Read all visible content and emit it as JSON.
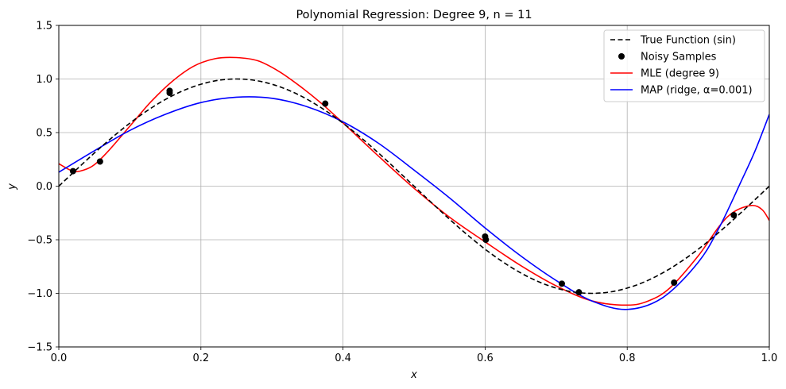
{
  "chart_data": {
    "type": "line",
    "title": "Polynomial Regression: Degree 9, n = 11",
    "xlabel": "x",
    "ylabel": "y",
    "xlim": [
      0,
      1
    ],
    "ylim": [
      -1.5,
      1.5
    ],
    "xticks": [
      0,
      0.2,
      0.4,
      0.6,
      0.8,
      1.0
    ],
    "xtick_labels": [
      "0.0",
      "0.2",
      "0.4",
      "0.6",
      "0.8",
      "1.0"
    ],
    "yticks": [
      -1.5,
      -1.0,
      -0.5,
      0.0,
      0.5,
      1.0,
      1.5
    ],
    "ytick_labels": [
      "−1.5",
      "−1.0",
      "−0.5",
      "0.0",
      "0.5",
      "1.0",
      "1.5"
    ],
    "grid": true,
    "legend_position": "top-right",
    "series": [
      {
        "name": "True Function (sin)",
        "kind": "dashed-line",
        "color": "#000000",
        "x": [
          0,
          0.025,
          0.05,
          0.075,
          0.1,
          0.125,
          0.15,
          0.175,
          0.2,
          0.225,
          0.25,
          0.275,
          0.3,
          0.325,
          0.35,
          0.375,
          0.4,
          0.425,
          0.45,
          0.475,
          0.5,
          0.525,
          0.55,
          0.575,
          0.6,
          0.625,
          0.65,
          0.675,
          0.7,
          0.725,
          0.75,
          0.775,
          0.8,
          0.825,
          0.85,
          0.875,
          0.9,
          0.925,
          0.95,
          0.975,
          1.0
        ],
        "y": [
          0,
          0.156,
          0.309,
          0.454,
          0.588,
          0.707,
          0.809,
          0.891,
          0.951,
          0.988,
          1.0,
          0.988,
          0.951,
          0.891,
          0.809,
          0.707,
          0.588,
          0.454,
          0.309,
          0.156,
          0,
          -0.156,
          -0.309,
          -0.454,
          -0.588,
          -0.707,
          -0.809,
          -0.891,
          -0.951,
          -0.988,
          -1.0,
          -0.988,
          -0.951,
          -0.891,
          -0.809,
          -0.707,
          -0.588,
          -0.454,
          -0.309,
          -0.156,
          0
        ]
      },
      {
        "name": "Noisy Samples",
        "kind": "scatter",
        "color": "#000000",
        "x": [
          0.02,
          0.058,
          0.156,
          0.156,
          0.375,
          0.6,
          0.601,
          0.708,
          0.732,
          0.866,
          0.95
        ],
        "y": [
          0.14,
          0.23,
          0.89,
          0.87,
          0.77,
          -0.47,
          -0.5,
          -0.91,
          -0.99,
          -0.9,
          -0.27
        ]
      },
      {
        "name": "MLE (degree 9)",
        "kind": "line",
        "color": "#ff0000",
        "x": [
          0,
          0.02,
          0.035,
          0.05,
          0.07,
          0.1,
          0.13,
          0.16,
          0.19,
          0.22,
          0.25,
          0.28,
          0.31,
          0.34,
          0.37,
          0.4,
          0.45,
          0.5,
          0.55,
          0.6,
          0.65,
          0.7,
          0.75,
          0.8,
          0.83,
          0.86,
          0.9,
          0.93,
          0.95,
          0.975,
          0.99,
          1.0
        ],
        "y": [
          0.21,
          0.14,
          0.15,
          0.2,
          0.33,
          0.56,
          0.79,
          0.98,
          1.12,
          1.19,
          1.2,
          1.17,
          1.07,
          0.93,
          0.77,
          0.59,
          0.28,
          -0.02,
          -0.29,
          -0.52,
          -0.74,
          -0.93,
          -1.07,
          -1.11,
          -1.07,
          -0.95,
          -0.65,
          -0.37,
          -0.24,
          -0.18,
          -0.22,
          -0.32
        ]
      },
      {
        "name": "MAP (ridge, α=0.001)",
        "kind": "line",
        "color": "#0000ff",
        "x": [
          0,
          0.05,
          0.1,
          0.15,
          0.2,
          0.25,
          0.3,
          0.35,
          0.4,
          0.45,
          0.5,
          0.55,
          0.6,
          0.65,
          0.7,
          0.75,
          0.8,
          0.85,
          0.9,
          0.93,
          0.96,
          0.98,
          1.0
        ],
        "y": [
          0.13,
          0.33,
          0.52,
          0.67,
          0.78,
          0.83,
          0.82,
          0.74,
          0.6,
          0.4,
          0.15,
          -0.11,
          -0.39,
          -0.65,
          -0.88,
          -1.07,
          -1.15,
          -1.04,
          -0.71,
          -0.38,
          0.04,
          0.33,
          0.67
        ]
      }
    ]
  }
}
